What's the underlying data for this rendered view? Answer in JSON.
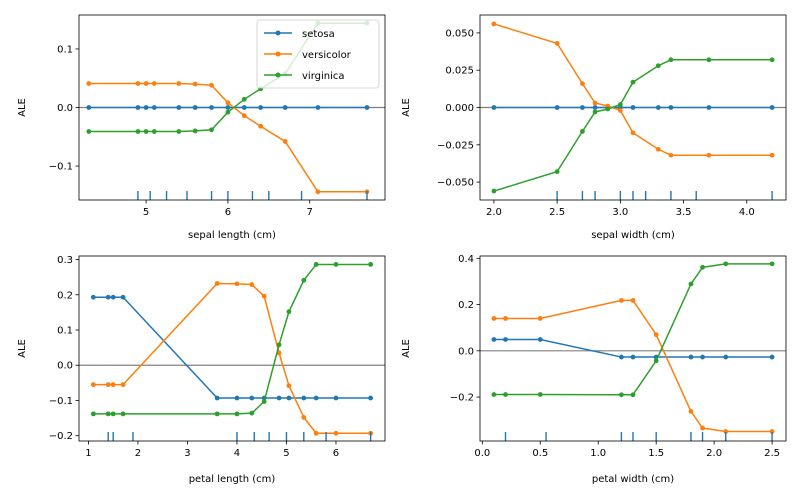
{
  "colors": {
    "setosa": "#1f77b4",
    "versicolor": "#ff7f0e",
    "virginica": "#2ca02c",
    "zero_line": "#808080",
    "rug": "#1f77b4"
  },
  "legend": {
    "placement": "top-right of first panel",
    "entries": [
      "setosa",
      "versicolor",
      "virginica"
    ]
  },
  "chart_data": [
    {
      "type": "line",
      "title": "",
      "xlabel": "sepal length (cm)",
      "ylabel": "ALE",
      "xlim": [
        4.18,
        7.92
      ],
      "ylim": [
        -0.158,
        0.158
      ],
      "xticks": [
        5,
        6,
        7
      ],
      "yticks": [
        -0.1,
        0.0,
        0.1
      ],
      "ytick_labels": [
        "−0.1",
        "0.0",
        "0.1"
      ],
      "zero_line": true,
      "x": [
        4.3,
        4.9,
        5.0,
        5.1,
        5.4,
        5.6,
        5.8,
        6.0,
        6.2,
        6.4,
        6.7,
        7.1,
        7.7
      ],
      "series": [
        {
          "name": "setosa",
          "values": [
            0,
            0,
            0,
            0,
            0,
            0,
            0,
            0,
            0,
            0,
            0,
            0,
            0
          ]
        },
        {
          "name": "versicolor",
          "values": [
            0.041,
            0.041,
            0.041,
            0.041,
            0.041,
            0.04,
            0.038,
            0.008,
            -0.014,
            -0.032,
            -0.058,
            -0.144,
            -0.144
          ]
        },
        {
          "name": "virginica",
          "values": [
            -0.041,
            -0.041,
            -0.041,
            -0.041,
            -0.041,
            -0.04,
            -0.038,
            -0.008,
            0.014,
            0.032,
            0.058,
            0.144,
            0.144
          ]
        }
      ],
      "rug": [
        4.9,
        5.05,
        5.25,
        5.5,
        5.8,
        6.0,
        6.3,
        6.5,
        6.9,
        7.7
      ]
    },
    {
      "type": "line",
      "title": "",
      "xlabel": "sepal width (cm)",
      "ylabel": "ALE",
      "xlim": [
        1.89,
        4.31
      ],
      "ylim": [
        -0.062,
        0.062
      ],
      "xticks": [
        2.0,
        2.5,
        3.0,
        3.5,
        4.0
      ],
      "yticks": [
        -0.05,
        -0.025,
        0.0,
        0.025,
        0.05
      ],
      "ytick_labels": [
        "−0.050",
        "−0.025",
        "0.000",
        "0.025",
        "0.050"
      ],
      "zero_line": true,
      "x": [
        2.0,
        2.5,
        2.7,
        2.8,
        2.9,
        3.0,
        3.1,
        3.3,
        3.4,
        3.7,
        4.2
      ],
      "series": [
        {
          "name": "setosa",
          "values": [
            0,
            0,
            0,
            0,
            0,
            0,
            0,
            0,
            0,
            0,
            0
          ]
        },
        {
          "name": "versicolor",
          "values": [
            0.056,
            0.043,
            0.016,
            0.003,
            0.001,
            -0.002,
            -0.017,
            -0.028,
            -0.032,
            -0.032,
            -0.032
          ]
        },
        {
          "name": "virginica",
          "values": [
            -0.056,
            -0.043,
            -0.016,
            -0.003,
            -0.001,
            0.002,
            0.017,
            0.028,
            0.032,
            0.032,
            0.032
          ]
        }
      ],
      "rug": [
        2.5,
        2.7,
        2.8,
        3.0,
        3.1,
        3.2,
        3.4,
        3.6,
        4.2
      ]
    },
    {
      "type": "line",
      "title": "",
      "xlabel": "petal length (cm)",
      "ylabel": "ALE",
      "xlim": [
        0.81,
        6.99
      ],
      "ylim": [
        -0.215,
        0.31
      ],
      "xticks": [
        1,
        2,
        3,
        4,
        5,
        6
      ],
      "yticks": [
        -0.2,
        -0.1,
        0.0,
        0.1,
        0.2,
        0.3
      ],
      "ytick_labels": [
        "−0.2",
        "−0.1",
        "0.0",
        "0.1",
        "0.2",
        "0.3"
      ],
      "zero_line": true,
      "x": [
        1.1,
        1.4,
        1.5,
        1.7,
        3.6,
        4.0,
        4.3,
        4.55,
        4.85,
        5.05,
        5.35,
        5.6,
        6.0,
        6.7
      ],
      "series": [
        {
          "name": "setosa",
          "values": [
            0.193,
            0.193,
            0.193,
            0.193,
            -0.093,
            -0.093,
            -0.093,
            -0.093,
            -0.093,
            -0.093,
            -0.093,
            -0.093,
            -0.093,
            -0.093
          ]
        },
        {
          "name": "versicolor",
          "values": [
            -0.055,
            -0.055,
            -0.055,
            -0.055,
            0.232,
            0.231,
            0.229,
            0.196,
            0.035,
            -0.058,
            -0.148,
            -0.193,
            -0.193,
            -0.193
          ]
        },
        {
          "name": "virginica",
          "values": [
            -0.138,
            -0.138,
            -0.138,
            -0.138,
            -0.138,
            -0.138,
            -0.136,
            -0.103,
            0.058,
            0.152,
            0.241,
            0.286,
            0.286,
            0.286
          ]
        }
      ],
      "rug": [
        1.4,
        1.5,
        1.9,
        4.0,
        4.35,
        4.65,
        5.0,
        5.35,
        5.8,
        6.7
      ]
    },
    {
      "type": "line",
      "title": "",
      "xlabel": "petal width (cm)",
      "ylabel": "ALE",
      "xlim": [
        -0.02,
        2.62
      ],
      "ylim": [
        -0.39,
        0.41
      ],
      "xticks": [
        0.0,
        0.5,
        1.0,
        1.5,
        2.0,
        2.5
      ],
      "yticks": [
        -0.2,
        0.0,
        0.2,
        0.4
      ],
      "ytick_labels": [
        "−0.2",
        "0.0",
        "0.2",
        "0.4"
      ],
      "zero_line": true,
      "x": [
        0.1,
        0.2,
        0.5,
        1.2,
        1.3,
        1.5,
        1.8,
        1.9,
        2.1,
        2.5
      ],
      "series": [
        {
          "name": "setosa",
          "values": [
            0.049,
            0.049,
            0.049,
            -0.027,
            -0.027,
            -0.027,
            -0.027,
            -0.027,
            -0.027,
            -0.027
          ]
        },
        {
          "name": "versicolor",
          "values": [
            0.14,
            0.14,
            0.14,
            0.218,
            0.218,
            0.07,
            -0.262,
            -0.334,
            -0.349,
            -0.349
          ]
        },
        {
          "name": "virginica",
          "values": [
            -0.189,
            -0.189,
            -0.189,
            -0.19,
            -0.19,
            -0.043,
            0.289,
            0.361,
            0.376,
            0.376
          ]
        }
      ],
      "rug": [
        0.2,
        0.55,
        1.2,
        1.3,
        1.5,
        1.8,
        1.9,
        2.1,
        2.5
      ]
    }
  ]
}
